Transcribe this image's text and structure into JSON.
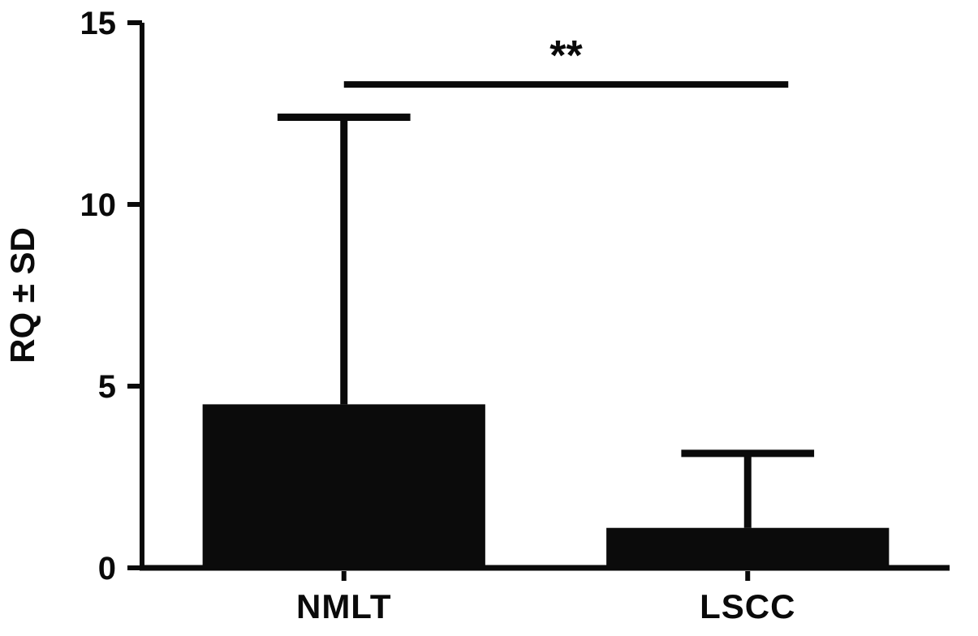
{
  "figure": {
    "background": "#ffffff",
    "ink_color": "#0a0a0a"
  },
  "chart_data": {
    "type": "bar",
    "title": "",
    "xlabel": "",
    "ylabel": "RQ ± SD",
    "categories": [
      "NMLT",
      "LSCC"
    ],
    "values": [
      4.5,
      1.1
    ],
    "errors_sd": [
      7.9,
      2.05
    ],
    "error_tops": [
      12.4,
      3.15
    ],
    "ylim": [
      0,
      15
    ],
    "yticks": [
      0,
      5,
      10,
      15
    ],
    "grid": false,
    "legend": "none",
    "bar_color": "#0b0b0b",
    "significance": {
      "label": "**",
      "between": [
        "NMLT",
        "LSCC"
      ],
      "line_y": 13.3
    }
  }
}
